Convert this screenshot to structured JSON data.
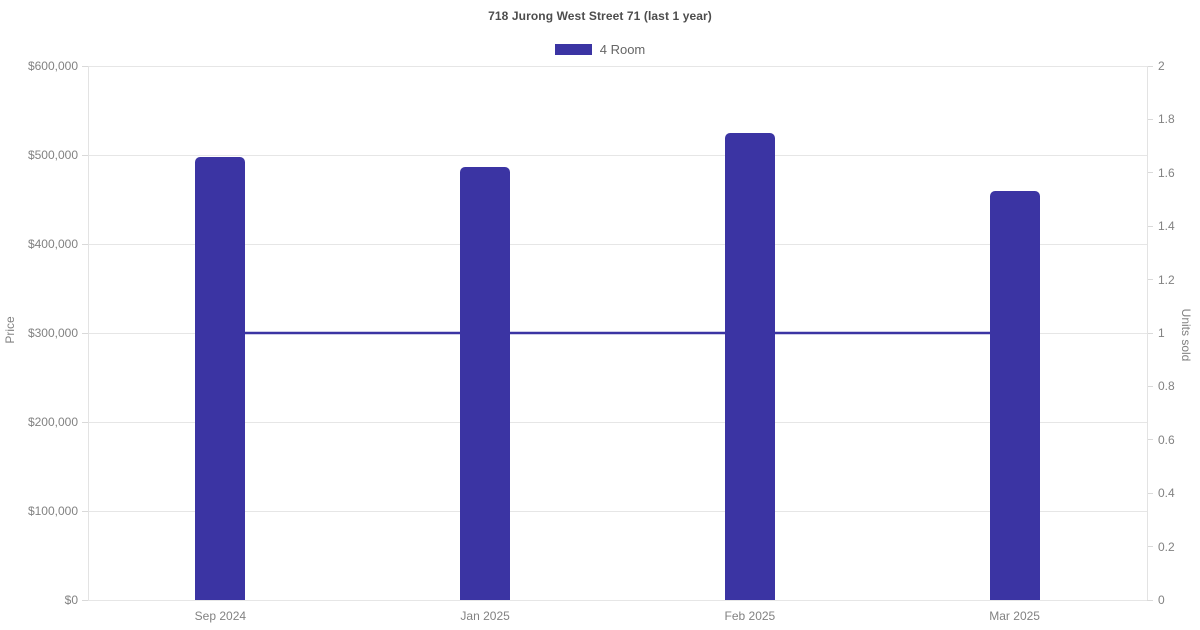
{
  "title": "718 Jurong West Street 71 (last 1 year)",
  "legend": {
    "items": [
      {
        "label": "4 Room",
        "color": "#3b34a3"
      }
    ]
  },
  "colors": {
    "series": "#3b34a3",
    "grid": "#e6e6e6",
    "axis_text": "#828282",
    "title_text": "#4d4d4d",
    "background": "#ffffff"
  },
  "chart_data": {
    "type": "bar",
    "title": "718 Jurong West Street 71 (last 1 year)",
    "categories": [
      "Sep 2024",
      "Jan 2025",
      "Feb 2025",
      "Mar 2025"
    ],
    "series": [
      {
        "name": "4 Room",
        "type": "bar",
        "axis": "left",
        "values": [
          498000,
          487000,
          525000,
          460000
        ],
        "color": "#3b34a3"
      },
      {
        "name": "4 Room units sold",
        "type": "line",
        "axis": "right",
        "values": [
          1,
          1,
          1,
          1
        ],
        "color": "#3b34a3"
      }
    ],
    "left_axis": {
      "label": "Price",
      "min": 0,
      "max": 600000,
      "step": 100000,
      "ticks": [
        "$0",
        "$100,000",
        "$200,000",
        "$300,000",
        "$400,000",
        "$500,000",
        "$600,000"
      ]
    },
    "right_axis": {
      "label": "Units sold",
      "min": 0,
      "max": 2,
      "step": 0.2,
      "ticks": [
        "0",
        "0.2",
        "0.4",
        "0.6",
        "0.8",
        "1",
        "1.2",
        "1.4",
        "1.6",
        "1.8",
        "2"
      ]
    },
    "grid": true,
    "legend_position": "top"
  }
}
